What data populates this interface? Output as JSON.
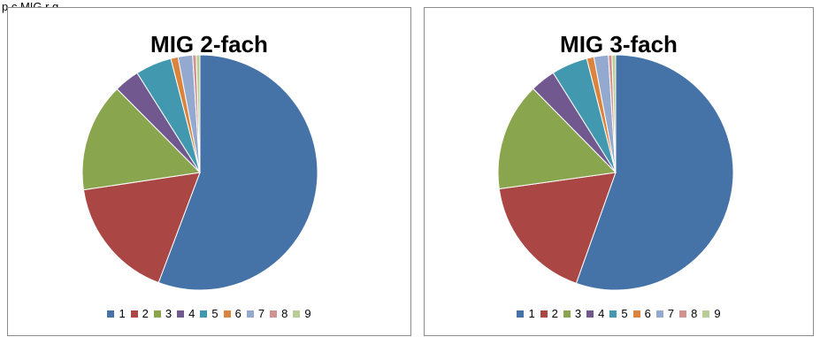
{
  "header_fragment": "p c  MIG  r  g",
  "colors": [
    "#4572A7",
    "#AA4643",
    "#89A54E",
    "#71588F",
    "#4198AF",
    "#DB843D",
    "#93A9CF",
    "#D19392",
    "#B9CD96"
  ],
  "chart_data": [
    {
      "type": "pie",
      "title": "MIG 2-fach",
      "categories": [
        "1",
        "2",
        "3",
        "4",
        "5",
        "6",
        "7",
        "8",
        "9"
      ],
      "values": [
        56,
        17,
        15,
        3.5,
        5,
        1,
        2,
        0.5,
        0.5
      ],
      "legend": "bottom"
    },
    {
      "type": "pie",
      "title": "MIG 3-fach",
      "categories": [
        "1",
        "2",
        "3",
        "4",
        "5",
        "6",
        "7",
        "8",
        "9"
      ],
      "values": [
        56,
        17.5,
        15,
        3.5,
        5,
        1,
        2,
        0.5,
        0.5
      ],
      "legend": "bottom"
    }
  ]
}
